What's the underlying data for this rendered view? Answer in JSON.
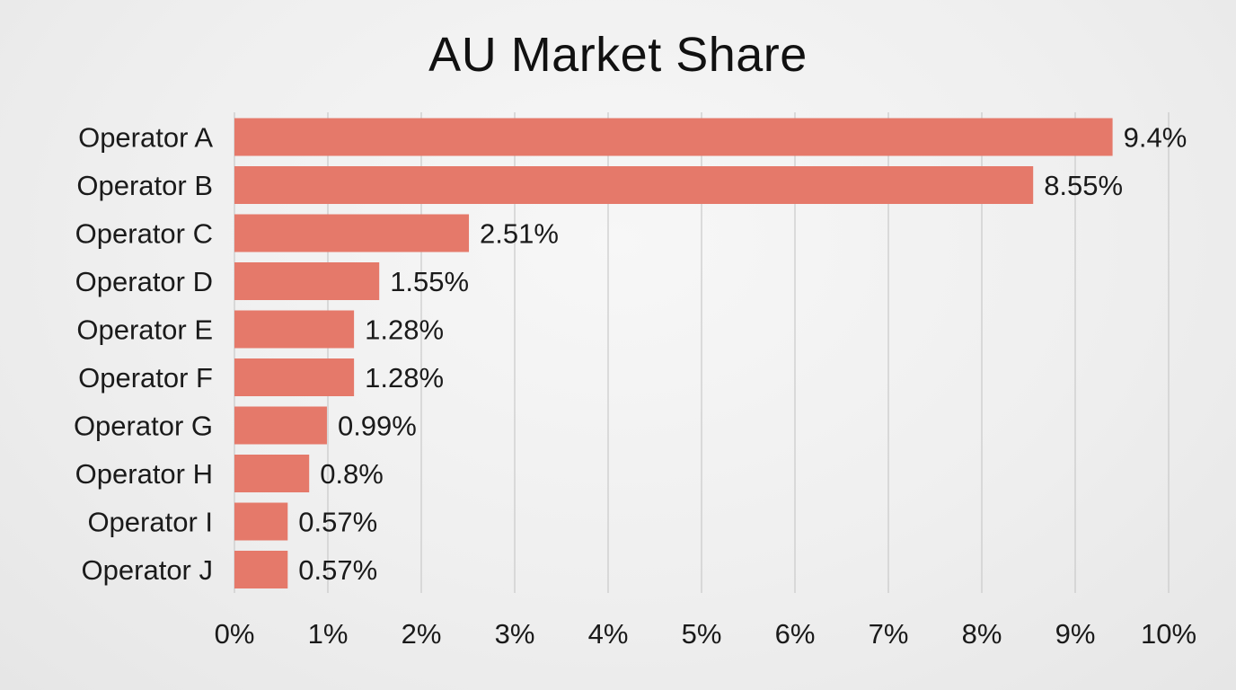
{
  "chart_data": {
    "type": "bar",
    "orientation": "horizontal",
    "title": "AU Market Share",
    "xlabel": "",
    "ylabel": "",
    "categories": [
      "Operator A",
      "Operator B",
      "Operator C",
      "Operator D",
      "Operator E",
      "Operator F",
      "Operator G",
      "Operator H",
      "Operator I",
      "Operator J"
    ],
    "values": [
      9.4,
      8.55,
      2.51,
      1.55,
      1.28,
      1.28,
      0.99,
      0.8,
      0.57,
      0.57
    ],
    "value_labels": [
      "9.4%",
      "8.55%",
      "2.51%",
      "1.55%",
      "1.28%",
      "1.28%",
      "0.99%",
      "0.8%",
      "0.57%",
      "0.57%"
    ],
    "xlim": [
      0,
      10
    ],
    "x_ticks": [
      0,
      1,
      2,
      3,
      4,
      5,
      6,
      7,
      8,
      9,
      10
    ],
    "x_tick_labels": [
      "0%",
      "1%",
      "2%",
      "3%",
      "4%",
      "5%",
      "6%",
      "7%",
      "8%",
      "9%",
      "10%"
    ],
    "grid": "vertical",
    "bar_color": "#e5796a",
    "grid_color": "#c9c9c9"
  }
}
